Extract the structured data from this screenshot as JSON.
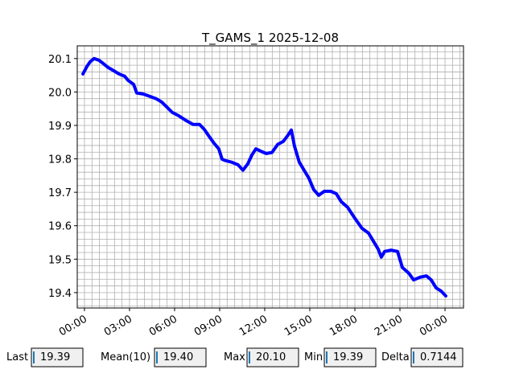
{
  "chart_data": {
    "type": "line",
    "title": "T_GAMS_1 2025-12-08",
    "color": "#0000ff",
    "grid": true,
    "xlim": [
      -0.48,
      25.23
    ],
    "ylim": [
      19.354,
      20.138
    ],
    "xticks": [
      {
        "value": 0,
        "label": "00:00"
      },
      {
        "value": 3,
        "label": "03:00"
      },
      {
        "value": 6,
        "label": "06:00"
      },
      {
        "value": 9,
        "label": "09:00"
      },
      {
        "value": 12,
        "label": "12:00"
      },
      {
        "value": 15,
        "label": "15:00"
      },
      {
        "value": 18,
        "label": "18:00"
      },
      {
        "value": 21,
        "label": "21:00"
      },
      {
        "value": 24,
        "label": "00:00"
      }
    ],
    "yticks": [
      {
        "value": 19.4,
        "label": "19.4"
      },
      {
        "value": 19.5,
        "label": "19.5"
      },
      {
        "value": 19.6,
        "label": "19.6"
      },
      {
        "value": 19.7,
        "label": "19.7"
      },
      {
        "value": 19.8,
        "label": "19.8"
      },
      {
        "value": 19.9,
        "label": "19.9"
      },
      {
        "value": 20.0,
        "label": "20.0"
      },
      {
        "value": 20.1,
        "label": "20.1"
      }
    ],
    "minor_xticks": [
      -0.5,
      0,
      0.5,
      1,
      1.5,
      2,
      2.5,
      3,
      3.5,
      4,
      4.5,
      5,
      5.5,
      6,
      6.5,
      7,
      7.5,
      8,
      8.5,
      9,
      9.5,
      10,
      10.5,
      11,
      11.5,
      12,
      12.5,
      13,
      13.5,
      14,
      14.5,
      15,
      15.5,
      16,
      16.5,
      17,
      17.5,
      18,
      18.5,
      19,
      19.5,
      20,
      20.5,
      21,
      21.5,
      22,
      22.5,
      23,
      23.5,
      24,
      24.5,
      25
    ],
    "minor_yticks": [
      19.36,
      19.38,
      19.4,
      19.42,
      19.44,
      19.46,
      19.48,
      19.5,
      19.52,
      19.54,
      19.56,
      19.58,
      19.6,
      19.62,
      19.64,
      19.66,
      19.68,
      19.7,
      19.72,
      19.74,
      19.76,
      19.78,
      19.8,
      19.82,
      19.84,
      19.86,
      19.88,
      19.9,
      19.92,
      19.94,
      19.96,
      19.98,
      20.0,
      20.02,
      20.04,
      20.06,
      20.08,
      20.1,
      20.12
    ],
    "x": [
      -0.1,
      0.16,
      0.37,
      0.64,
      0.96,
      1.23,
      1.55,
      1.93,
      2.3,
      2.68,
      2.9,
      3.27,
      3.48,
      3.91,
      4.34,
      4.77,
      5.14,
      5.46,
      5.84,
      6.27,
      6.75,
      7.23,
      7.66,
      7.98,
      8.3,
      8.62,
      8.94,
      9.16,
      9.37,
      9.8,
      10.23,
      10.55,
      10.87,
      11.14,
      11.41,
      11.73,
      12.1,
      12.48,
      12.86,
      13.23,
      13.55,
      13.77,
      13.98,
      14.3,
      14.62,
      14.94,
      15.26,
      15.59,
      15.96,
      16.39,
      16.76,
      17.09,
      17.52,
      17.84,
      18.16,
      18.48,
      18.91,
      19.23,
      19.55,
      19.76,
      19.98,
      20.41,
      20.84,
      21.16,
      21.59,
      21.91,
      22.34,
      22.76,
      23.08,
      23.41,
      23.73,
      24.05
    ],
    "values": [
      20.054,
      20.076,
      20.09,
      20.1,
      20.095,
      20.086,
      20.074,
      20.064,
      20.054,
      20.047,
      20.035,
      20.023,
      19.997,
      19.994,
      19.987,
      19.98,
      19.97,
      19.956,
      19.939,
      19.929,
      19.915,
      19.903,
      19.903,
      19.888,
      19.867,
      19.847,
      19.83,
      19.799,
      19.795,
      19.79,
      19.782,
      19.766,
      19.785,
      19.811,
      19.83,
      19.823,
      19.816,
      19.819,
      19.843,
      19.852,
      19.871,
      19.886,
      19.838,
      19.79,
      19.766,
      19.742,
      19.708,
      19.691,
      19.703,
      19.703,
      19.696,
      19.672,
      19.655,
      19.633,
      19.612,
      19.592,
      19.578,
      19.554,
      19.53,
      19.506,
      19.523,
      19.527,
      19.523,
      19.475,
      19.458,
      19.438,
      19.446,
      19.45,
      19.438,
      19.414,
      19.405,
      19.39
    ]
  },
  "widgets": [
    {
      "label": "Last",
      "value": "19.39"
    },
    {
      "label": "Mean(10)",
      "value": "19.40"
    },
    {
      "label": "Max",
      "value": "20.10"
    },
    {
      "label": "Min",
      "value": "19.39"
    },
    {
      "label": "Delta",
      "value": "0.7144"
    }
  ]
}
